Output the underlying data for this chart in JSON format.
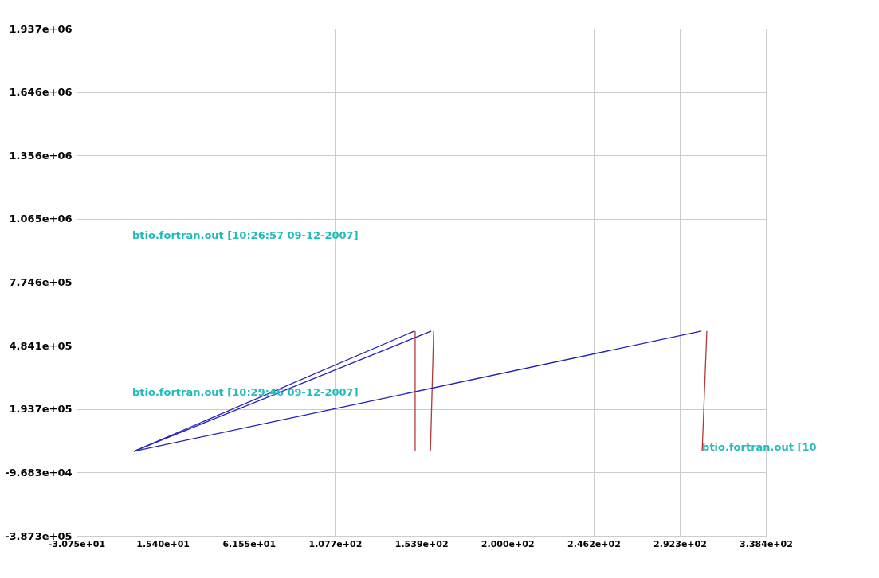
{
  "chart_data": {
    "type": "line",
    "series": [
      {
        "color": "#2222bb",
        "x": [
          0,
          150.2
        ],
        "values": [
          0,
          551000
        ]
      },
      {
        "color": "#b03a3a",
        "x": [
          150.6,
          150.6
        ],
        "values": [
          551000,
          0
        ]
      },
      {
        "color": "#2222bb",
        "x": [
          0,
          159.2
        ],
        "values": [
          0,
          551000
        ]
      },
      {
        "color": "#b03a3a",
        "x": [
          160.5,
          158.8
        ],
        "values": [
          551000,
          0
        ]
      },
      {
        "color": "#2222bb",
        "x": [
          0,
          303.9
        ],
        "values": [
          0,
          551000
        ]
      },
      {
        "color": "#b03a3a",
        "x": [
          306.8,
          304.3
        ],
        "values": [
          551000,
          0
        ]
      }
    ],
    "xlim": [
      -30.75,
      338.4
    ],
    "xticks": [
      {
        "value": -30.75,
        "label": "-3.075e+01"
      },
      {
        "value": 15.4,
        "label": "1.540e+01"
      },
      {
        "value": 61.55,
        "label": "6.155e+01"
      },
      {
        "value": 107.7,
        "label": "1.077e+02"
      },
      {
        "value": 153.9,
        "label": "1.539e+02"
      },
      {
        "value": 200.0,
        "label": "2.000e+02"
      },
      {
        "value": 246.2,
        "label": "2.462e+02"
      },
      {
        "value": 292.3,
        "label": "2.923e+02"
      },
      {
        "value": 338.4,
        "label": "3.384e+02"
      }
    ],
    "ylim": [
      -387300,
      1937000
    ],
    "yticks": [
      {
        "value": -387300,
        "label": "-3.873e+05"
      },
      {
        "value": -96830,
        "label": "-9.683e+04"
      },
      {
        "value": 193700,
        "label": "1.937e+05"
      },
      {
        "value": 484100,
        "label": "4.841e+05"
      },
      {
        "value": 774600,
        "label": "7.746e+05"
      },
      {
        "value": 1065000,
        "label": "1.065e+06"
      },
      {
        "value": 1356000,
        "label": "1.356e+06"
      },
      {
        "value": 1646000,
        "label": "1.646e+06"
      },
      {
        "value": 1937000,
        "label": "1.937e+06"
      }
    ],
    "grid": true,
    "marker": "none",
    "annotations": [
      "btio.fortran.out [10:26:57  09-12-2007]",
      "btio.fortran.out [10:29:46  09-12-2007]",
      {
        "text": "btio.fortran.out [10",
        "x": 304.3,
        "y": 18000
      }
    ]
  }
}
